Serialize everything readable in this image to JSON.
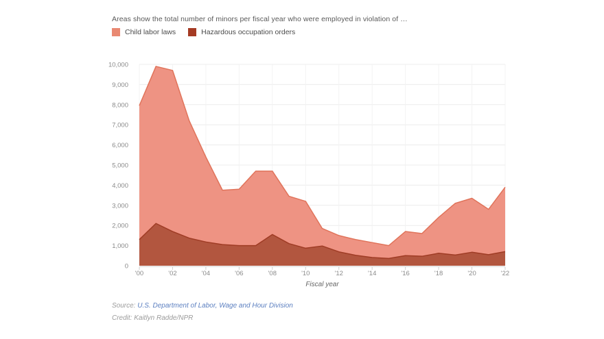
{
  "header": {
    "title": "Areas show the total number of minors per fiscal year who were employed in violation of …"
  },
  "legend": [
    {
      "label": "Child labor laws",
      "color": "#E98972"
    },
    {
      "label": "Hazardous occupation orders",
      "color": "#A53B24"
    }
  ],
  "chart_data": {
    "type": "area",
    "title": "Areas show the total number of minors per fiscal year who were employed in violation of …",
    "xlabel": "Fiscal year",
    "ylabel": "",
    "ylim": [
      0,
      10000
    ],
    "grid": true,
    "legend_position": "top-left",
    "x_tick_labels": [
      "'00",
      "'02",
      "'04",
      "'06",
      "'08",
      "'10",
      "'12",
      "'14",
      "'16",
      "'18",
      "'20",
      "'22"
    ],
    "y_tick_labels": [
      "0",
      "1,000",
      "2,000",
      "3,000",
      "4,000",
      "5,000",
      "6,000",
      "7,000",
      "8,000",
      "9,000",
      "10,000"
    ],
    "years": [
      2000,
      2001,
      2002,
      2003,
      2004,
      2005,
      2006,
      2007,
      2008,
      2009,
      2010,
      2011,
      2012,
      2013,
      2014,
      2015,
      2016,
      2017,
      2018,
      2019,
      2020,
      2021,
      2022
    ],
    "series": [
      {
        "name": "Child labor laws",
        "fill": "#EE9383",
        "stroke": "#E0735A",
        "values": [
          7950,
          9900,
          9700,
          7200,
          5400,
          3750,
          3800,
          4700,
          4700,
          3450,
          3200,
          1850,
          1500,
          1300,
          1150,
          1000,
          1700,
          1600,
          2400,
          3100,
          3350,
          2800,
          3900
        ]
      },
      {
        "name": "Hazardous occupation orders",
        "fill": "#B2563F",
        "stroke": "#9F3C25",
        "values": [
          1300,
          2100,
          1700,
          1370,
          1180,
          1050,
          1000,
          1000,
          1550,
          1100,
          870,
          980,
          690,
          520,
          410,
          360,
          500,
          470,
          620,
          530,
          670,
          550,
          700
        ]
      }
    ],
    "axis_color": "#8a8a8a",
    "gridline_color": "#ececec",
    "vertical_gridline_color": "#f3f3f3"
  },
  "footer": {
    "source_label": "Source:",
    "source_link": "U.S. Department of Labor, Wage and Hour Division",
    "credit": "Credit: Kaitlyn Radde/NPR"
  }
}
